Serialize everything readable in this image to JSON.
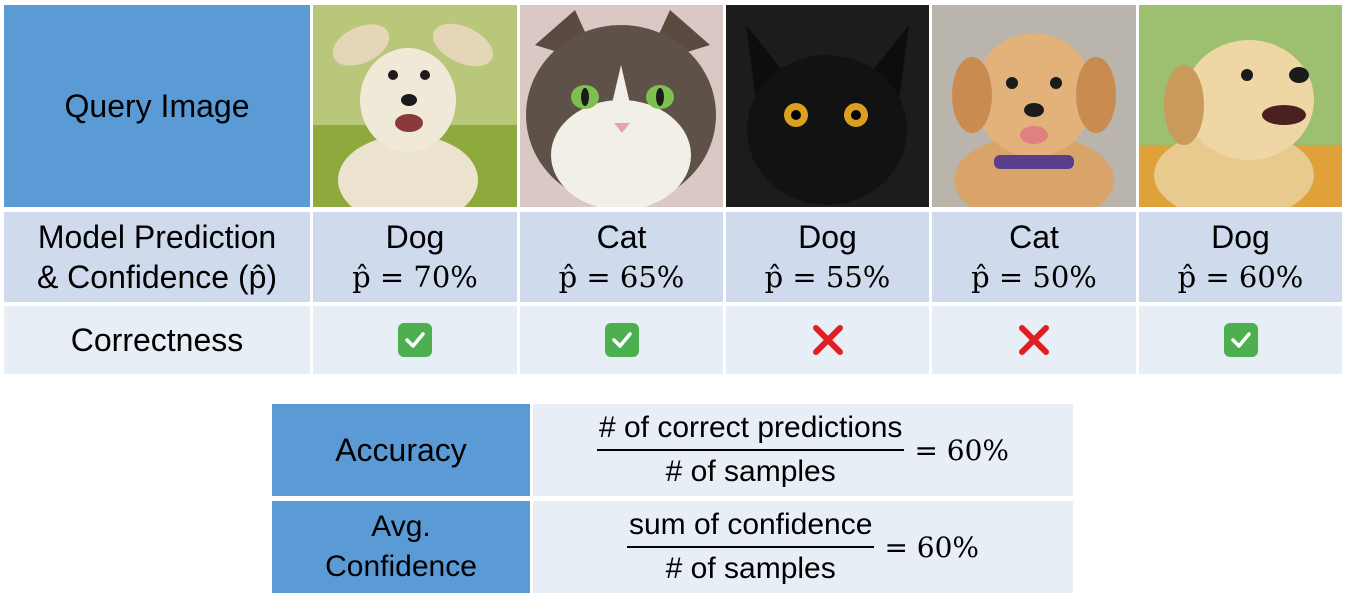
{
  "table": {
    "row_labels": {
      "query": "Query Image",
      "prediction_line1": "Model Prediction",
      "prediction_line2": "& Confidence (p̂)",
      "correctness": "Correctness"
    },
    "samples": [
      {
        "image": "white-puppy-running",
        "label": "Dog",
        "confidence": "p̂  = 70%",
        "correct": true
      },
      {
        "image": "calico-cat",
        "label": "Cat",
        "confidence": "p̂  = 65%",
        "correct": true
      },
      {
        "image": "black-cat",
        "label": "Dog",
        "confidence": "p̂  = 55%",
        "correct": false
      },
      {
        "image": "golden-puppy-collar",
        "label": "Cat",
        "confidence": "p̂  = 50%",
        "correct": false
      },
      {
        "image": "golden-puppy-flowers",
        "label": "Dog",
        "confidence": "p̂  = 60%",
        "correct": true
      }
    ]
  },
  "metrics": {
    "accuracy": {
      "label": "Accuracy",
      "numerator": "# of correct predictions",
      "denominator": "# of samples",
      "result": "= 60%"
    },
    "avg_confidence": {
      "label_line1": "Avg.",
      "label_line2": "Confidence",
      "numerator": "sum of confidence",
      "denominator": "# of samples",
      "result": "= 60%"
    }
  },
  "colors": {
    "header_blue": "#5b9bd5",
    "row_mid": "#cfdbed",
    "row_light": "#e8eef6",
    "check_green": "#4caf50",
    "cross_red": "#e02020"
  }
}
